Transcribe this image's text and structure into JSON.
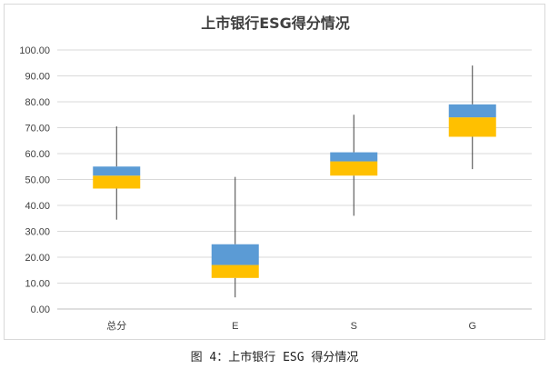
{
  "caption": "图 4：上市银行 ESG 得分情况",
  "chart_data": {
    "type": "box",
    "title": "上市银行ESG得分情况",
    "xlabel": "",
    "ylabel": "",
    "ylim": [
      0,
      100
    ],
    "ytick_step": 10,
    "ytick_format": "0.00",
    "grid": true,
    "categories": [
      "总分",
      "E",
      "S",
      "G"
    ],
    "boxes": [
      {
        "min": 34.5,
        "q1": 46.5,
        "median": 51.5,
        "q3": 55,
        "max": 70.5
      },
      {
        "min": 4.5,
        "q1": 12,
        "median": 17,
        "q3": 25,
        "max": 51
      },
      {
        "min": 36,
        "q1": 51.5,
        "median": 57,
        "q3": 60.5,
        "max": 75
      },
      {
        "min": 54,
        "q1": 66.5,
        "median": 74,
        "q3": 79,
        "max": 94
      }
    ],
    "colors": {
      "lower_box": "#FFC000",
      "upper_box": "#5B9BD5",
      "whisker": "#404040",
      "grid": "#d9d9d9",
      "axis": "#bfbfbf"
    }
  }
}
